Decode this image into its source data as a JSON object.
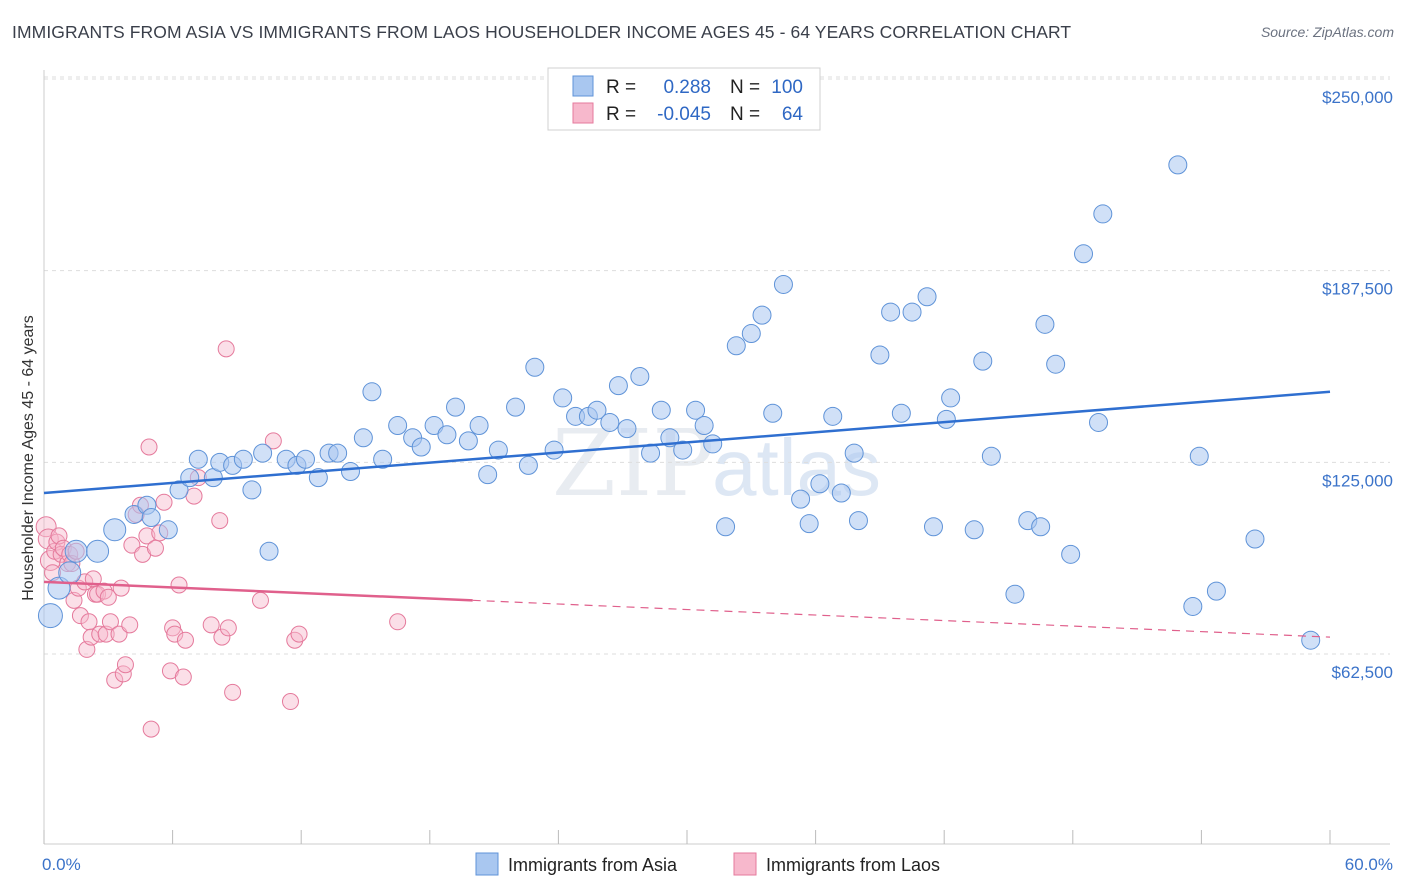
{
  "title": "IMMIGRANTS FROM ASIA VS IMMIGRANTS FROM LAOS HOUSEHOLDER INCOME AGES 45 - 64 YEARS CORRELATION CHART",
  "source": "Source: ZipAtlas.com",
  "watermark": {
    "zip": "ZIP",
    "atlas": "atlas"
  },
  "colors": {
    "asia_fill": "#a9c7f0",
    "asia_stroke": "#5f93d8",
    "asia_line": "#2f6fd0",
    "laos_fill": "#f7b8cc",
    "laos_stroke": "#e57a9c",
    "laos_line": "#e0608c",
    "axis_label": "#3b73c9",
    "grid": "#dddddd"
  },
  "legend": {
    "rows": [
      {
        "r_label": "R = ",
        "r_value": "0.288",
        "n_label": "N = ",
        "n_value": "100"
      },
      {
        "r_label": "R = ",
        "r_value": "-0.045",
        "n_label": "N = ",
        "n_value": "64"
      }
    ]
  },
  "bottom_legend": [
    "Immigrants from Asia",
    "Immigrants from Laos"
  ],
  "chart_data": {
    "type": "scatter",
    "title": "IMMIGRANTS FROM ASIA VS IMMIGRANTS FROM LAOS HOUSEHOLDER INCOME AGES 45 - 64 YEARS CORRELATION CHART",
    "xlabel": "",
    "ylabel": "Householder Income Ages 45 - 64 years",
    "xlim": [
      0,
      60
    ],
    "ylim": [
      5000,
      262500
    ],
    "x_tick_labels": [
      "0.0%",
      "60.0%"
    ],
    "y_ticks": [
      62500,
      125000,
      187500,
      250000
    ],
    "y_tick_labels": [
      "$62,500",
      "$125,000",
      "$187,500",
      "$250,000"
    ],
    "series": [
      {
        "name": "Immigrants from Asia",
        "R": 0.288,
        "N": 100,
        "trend": {
          "x": [
            0,
            60
          ],
          "y": [
            115000,
            148000
          ]
        },
        "points": [
          [
            0.3,
            75000,
            4
          ],
          [
            0.7,
            84000,
            3
          ],
          [
            1.2,
            89000,
            3
          ],
          [
            1.5,
            96000,
            3
          ],
          [
            2.5,
            96000,
            3
          ],
          [
            3.3,
            103000,
            3
          ],
          [
            4.2,
            108000,
            2
          ],
          [
            4.8,
            111000,
            2
          ],
          [
            5,
            107000,
            2
          ],
          [
            5.8,
            103000,
            2
          ],
          [
            6.3,
            116000,
            2
          ],
          [
            6.8,
            120000,
            2
          ],
          [
            7.2,
            126000,
            2
          ],
          [
            7.9,
            120000,
            2
          ],
          [
            8.2,
            125000,
            2
          ],
          [
            8.8,
            124000,
            2
          ],
          [
            9.3,
            126000,
            2
          ],
          [
            9.7,
            116000,
            2
          ],
          [
            10.2,
            128000,
            2
          ],
          [
            10.5,
            96000,
            2
          ],
          [
            11.3,
            126000,
            2
          ],
          [
            11.8,
            124000,
            2
          ],
          [
            12.2,
            126000,
            2
          ],
          [
            12.8,
            120000,
            2
          ],
          [
            13.3,
            128000,
            2
          ],
          [
            13.7,
            128000,
            2
          ],
          [
            14.3,
            122000,
            2
          ],
          [
            14.9,
            133000,
            2
          ],
          [
            15.3,
            148000,
            2
          ],
          [
            15.8,
            126000,
            2
          ],
          [
            16.5,
            137000,
            2
          ],
          [
            17.2,
            133000,
            2
          ],
          [
            17.6,
            130000,
            2
          ],
          [
            18.2,
            137000,
            2
          ],
          [
            18.8,
            134000,
            2
          ],
          [
            19.2,
            143000,
            2
          ],
          [
            19.8,
            132000,
            2
          ],
          [
            20.3,
            137000,
            2
          ],
          [
            20.7,
            121000,
            2
          ],
          [
            21.2,
            129000,
            2
          ],
          [
            22.0,
            143000,
            2
          ],
          [
            22.6,
            124000,
            2
          ],
          [
            22.9,
            156000,
            2
          ],
          [
            23.8,
            129000,
            2
          ],
          [
            24.2,
            146000,
            2
          ],
          [
            24.8,
            140000,
            2
          ],
          [
            25.4,
            140000,
            2
          ],
          [
            25.8,
            142000,
            2
          ],
          [
            26.4,
            138000,
            2
          ],
          [
            26.8,
            150000,
            2
          ],
          [
            27.2,
            136000,
            2
          ],
          [
            27.8,
            153000,
            2
          ],
          [
            28.3,
            128000,
            2
          ],
          [
            28.8,
            142000,
            2
          ],
          [
            29.2,
            133000,
            2
          ],
          [
            29.8,
            129000,
            2
          ],
          [
            30.4,
            142000,
            2
          ],
          [
            30.8,
            137000,
            2
          ],
          [
            31.2,
            131000,
            2
          ],
          [
            31.8,
            104000,
            2
          ],
          [
            32.3,
            163000,
            2
          ],
          [
            33,
            167000,
            2
          ],
          [
            33.5,
            173000,
            2
          ],
          [
            34,
            141000,
            2
          ],
          [
            34.5,
            183000,
            2
          ],
          [
            35.3,
            113000,
            2
          ],
          [
            35.7,
            105000,
            2
          ],
          [
            36.2,
            118000,
            2
          ],
          [
            36.8,
            140000,
            2
          ],
          [
            37.2,
            115000,
            2
          ],
          [
            37.8,
            128000,
            2
          ],
          [
            38,
            106000,
            2
          ],
          [
            39,
            160000,
            2
          ],
          [
            39.5,
            174000,
            2
          ],
          [
            40,
            141000,
            2
          ],
          [
            40.5,
            174000,
            2
          ],
          [
            41.2,
            179000,
            2
          ],
          [
            41.5,
            104000,
            2
          ],
          [
            42.1,
            139000,
            2
          ],
          [
            42.3,
            146000,
            2
          ],
          [
            43.4,
            103000,
            2
          ],
          [
            43.8,
            158000,
            2
          ],
          [
            44.2,
            127000,
            2
          ],
          [
            45.3,
            82000,
            2
          ],
          [
            45.9,
            106000,
            2
          ],
          [
            46.5,
            104000,
            2
          ],
          [
            46.7,
            170000,
            2
          ],
          [
            47.2,
            157000,
            2
          ],
          [
            47.9,
            95000,
            2
          ],
          [
            48.5,
            193000,
            2
          ],
          [
            49.2,
            138000,
            2
          ],
          [
            49.4,
            206000,
            2
          ],
          [
            52.9,
            222000,
            2
          ],
          [
            53.6,
            78000,
            2
          ],
          [
            53.9,
            127000,
            2
          ],
          [
            54.7,
            83000,
            2
          ],
          [
            56.5,
            100000,
            2
          ],
          [
            59.1,
            67000,
            2
          ]
        ]
      },
      {
        "name": "Immigrants from Laos",
        "R": -0.045,
        "N": 64,
        "trend": {
          "x": [
            0,
            20
          ],
          "y": [
            86000,
            80000
          ]
        },
        "trend_dashed": {
          "x": [
            20,
            60
          ],
          "y": [
            80000,
            68000
          ]
        },
        "points": [
          [
            0.1,
            104000,
            3
          ],
          [
            0.2,
            100000,
            3
          ],
          [
            0.3,
            93000,
            3
          ],
          [
            0.5,
            96000,
            2
          ],
          [
            0.6,
            99000,
            2
          ],
          [
            0.7,
            101000,
            2
          ],
          [
            0.8,
            95000,
            2
          ],
          [
            0.9,
            97000,
            2
          ],
          [
            1.1,
            92000,
            2
          ],
          [
            1.2,
            95000,
            2
          ],
          [
            1.3,
            92000,
            2
          ],
          [
            1.4,
            80000,
            2
          ],
          [
            1.5,
            96000,
            2
          ],
          [
            1.6,
            84000,
            2
          ],
          [
            1.7,
            75000,
            2
          ],
          [
            1.9,
            86000,
            2
          ],
          [
            2.0,
            64000,
            2
          ],
          [
            2.1,
            73000,
            2
          ],
          [
            2.2,
            68000,
            2
          ],
          [
            2.3,
            87000,
            2
          ],
          [
            2.4,
            82000,
            2
          ],
          [
            2.5,
            82000,
            2
          ],
          [
            2.6,
            69000,
            2
          ],
          [
            2.8,
            83000,
            2
          ],
          [
            2.9,
            69000,
            2
          ],
          [
            3.0,
            81000,
            2
          ],
          [
            3.1,
            73000,
            2
          ],
          [
            3.3,
            54000,
            2
          ],
          [
            3.5,
            69000,
            2
          ],
          [
            3.6,
            84000,
            2
          ],
          [
            3.7,
            56000,
            2
          ],
          [
            3.8,
            59000,
            2
          ],
          [
            4.0,
            72000,
            2
          ],
          [
            4.1,
            98000,
            2
          ],
          [
            4.3,
            108000,
            2
          ],
          [
            4.5,
            111000,
            2
          ],
          [
            4.6,
            95000,
            2
          ],
          [
            4.8,
            101000,
            2
          ],
          [
            4.9,
            130000,
            2
          ],
          [
            5.0,
            38000,
            2
          ],
          [
            5.2,
            97000,
            2
          ],
          [
            5.4,
            102000,
            2
          ],
          [
            5.6,
            112000,
            2
          ],
          [
            5.9,
            57000,
            2
          ],
          [
            6.0,
            71000,
            2
          ],
          [
            6.1,
            69000,
            2
          ],
          [
            6.3,
            85000,
            2
          ],
          [
            6.5,
            55000,
            2
          ],
          [
            6.6,
            67000,
            2
          ],
          [
            7.0,
            114000,
            2
          ],
          [
            7.2,
            120000,
            2
          ],
          [
            7.8,
            72000,
            2
          ],
          [
            8.2,
            106000,
            2
          ],
          [
            8.3,
            68000,
            2
          ],
          [
            8.5,
            162000,
            2
          ],
          [
            8.6,
            71000,
            2
          ],
          [
            8.8,
            50000,
            2
          ],
          [
            10.1,
            80000,
            2
          ],
          [
            10.7,
            132000,
            2
          ],
          [
            11.5,
            47000,
            2
          ],
          [
            11.7,
            67000,
            2
          ],
          [
            11.9,
            69000,
            2
          ],
          [
            16.5,
            73000,
            2
          ],
          [
            0.4,
            89000,
            2
          ]
        ]
      }
    ]
  }
}
